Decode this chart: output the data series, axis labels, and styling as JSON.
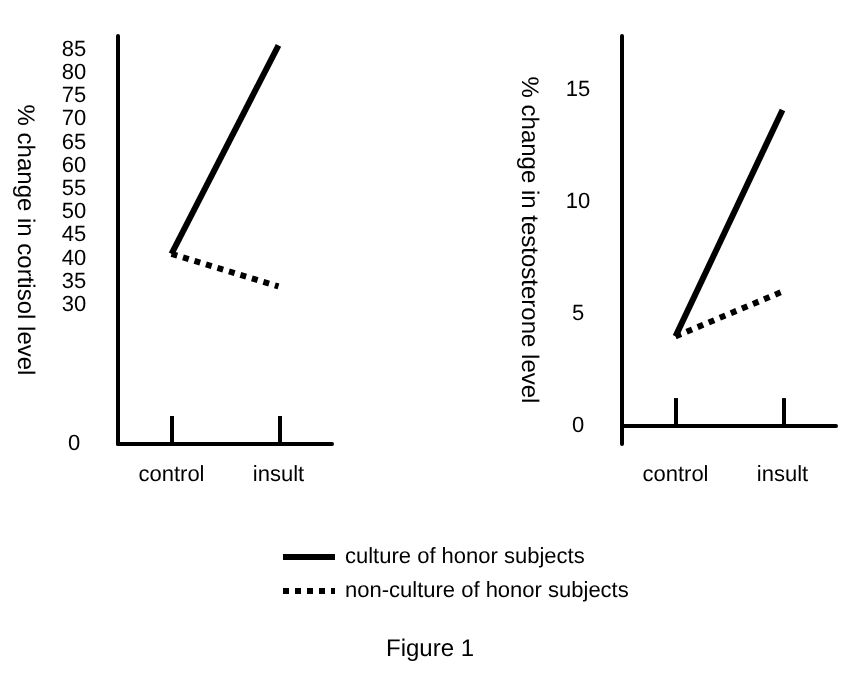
{
  "chart_data": [
    {
      "type": "line",
      "ylabel": "% change in cortisol level",
      "categories": [
        "control",
        "insult"
      ],
      "ylim": [
        0,
        88
      ],
      "yticks": [
        0,
        30,
        35,
        40,
        45,
        50,
        55,
        60,
        65,
        70,
        75,
        80,
        85
      ],
      "legend": "bottom",
      "grid": false,
      "marker": "none",
      "annotations": [
        "Figure 1"
      ],
      "series": [
        {
          "name": "culture of honor subjects",
          "color": "#000000",
          "line_style": "solid",
          "values": [
            41,
            86
          ]
        },
        {
          "name": "non-culture of honor subjects",
          "color": "#000000",
          "line_style": "dotted",
          "values": [
            41,
            34
          ]
        }
      ]
    },
    {
      "type": "line",
      "ylabel": "% change in testosterone level",
      "categories": [
        "control",
        "insult"
      ],
      "ylim": [
        -0.8,
        17.4
      ],
      "yticks": [
        0,
        5,
        10,
        15
      ],
      "legend": false,
      "grid": false,
      "marker": "none",
      "series": [
        {
          "color": "#000000",
          "line_style": "solid",
          "values": [
            4,
            14.1
          ]
        },
        {
          "color": "#000000",
          "line_style": "dotted",
          "values": [
            4,
            6
          ]
        }
      ]
    }
  ]
}
